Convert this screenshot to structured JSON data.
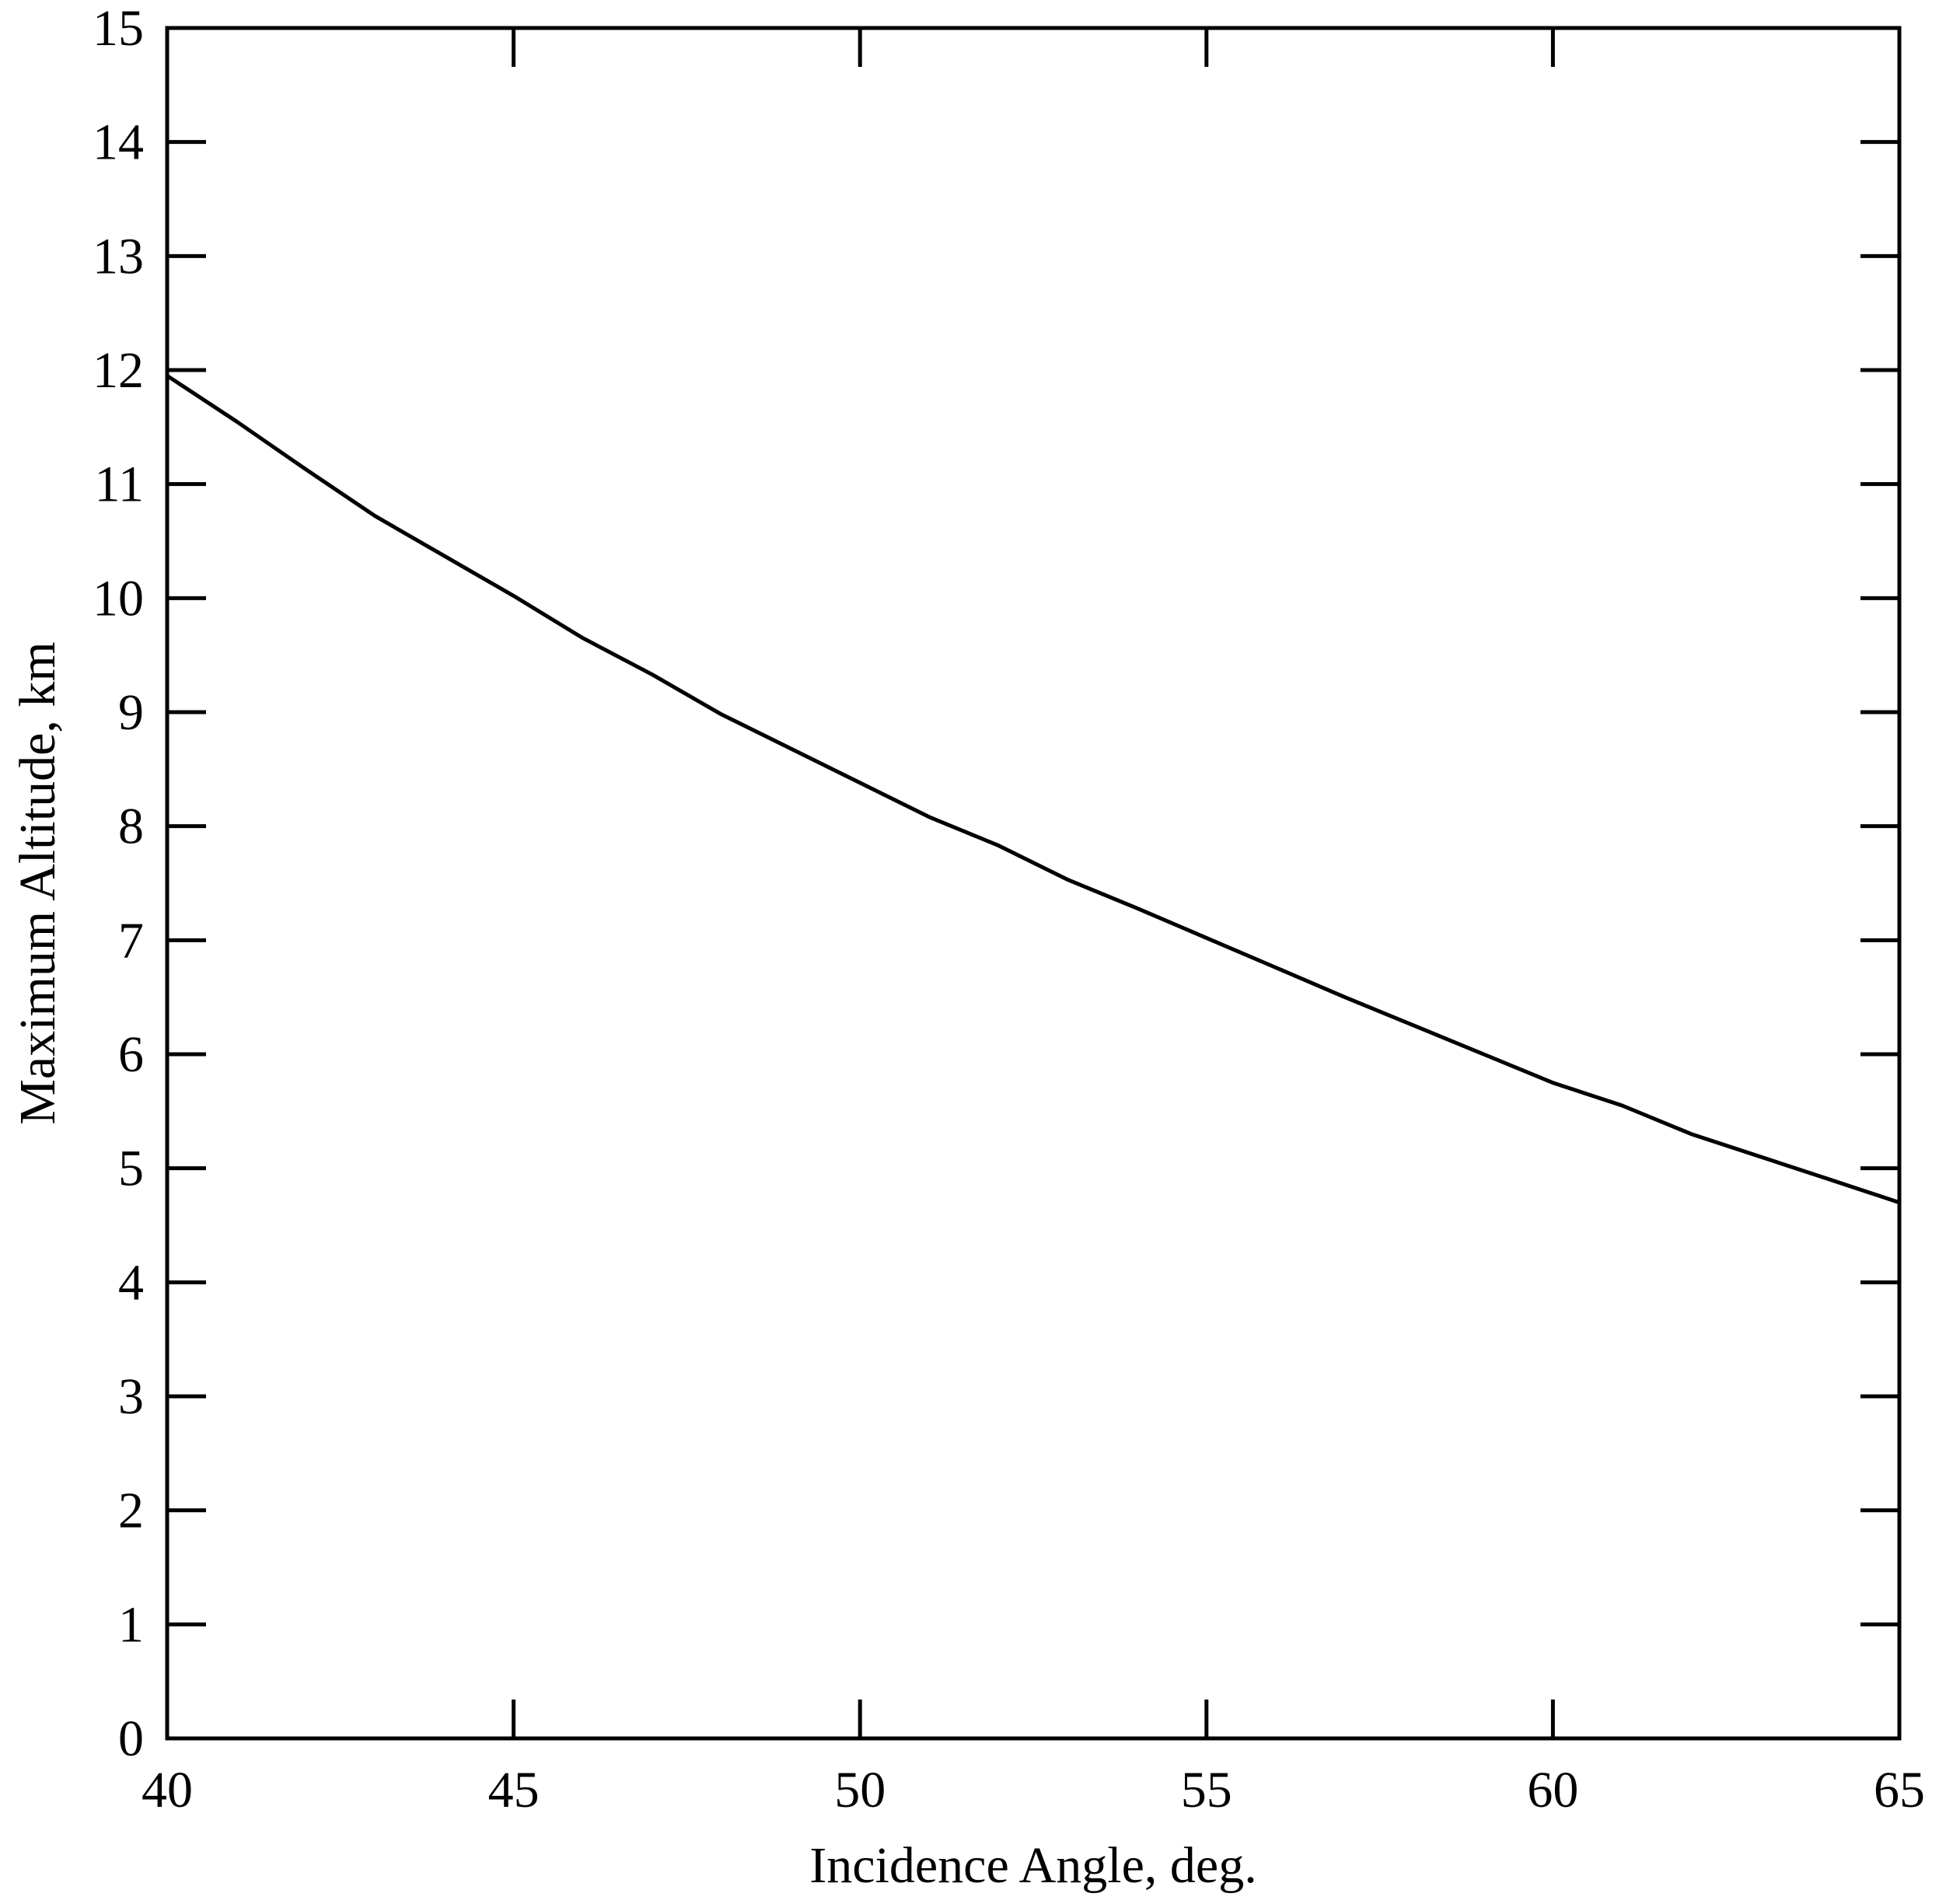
{
  "chart_data": {
    "type": "line",
    "title": "",
    "xlabel": "Incidence Angle, deg.",
    "ylabel": "Maximum Altitude, km",
    "xlim": [
      40,
      65
    ],
    "ylim": [
      0,
      15
    ],
    "x_ticks": [
      "40",
      "45",
      "50",
      "55",
      "60",
      "65"
    ],
    "y_ticks": [
      "0",
      "1",
      "2",
      "3",
      "4",
      "5",
      "6",
      "7",
      "8",
      "9",
      "10",
      "11",
      "12",
      "13",
      "14",
      "15"
    ],
    "grid": false,
    "legend": "none",
    "line_color": "#000000",
    "series": [
      {
        "x": [
          40,
          41,
          42,
          43,
          44,
          45,
          46,
          47,
          48,
          49,
          50,
          51,
          52,
          53,
          54,
          55,
          56,
          57,
          58,
          59,
          60,
          61,
          62,
          63,
          64,
          65
        ],
        "y": [
          11.95,
          11.55,
          11.13,
          10.72,
          10.37,
          10.02,
          9.65,
          9.33,
          8.98,
          8.68,
          8.38,
          8.08,
          7.83,
          7.53,
          7.28,
          7.02,
          6.76,
          6.5,
          6.25,
          6.0,
          5.75,
          5.55,
          5.3,
          5.1,
          4.9,
          4.7
        ]
      }
    ]
  }
}
